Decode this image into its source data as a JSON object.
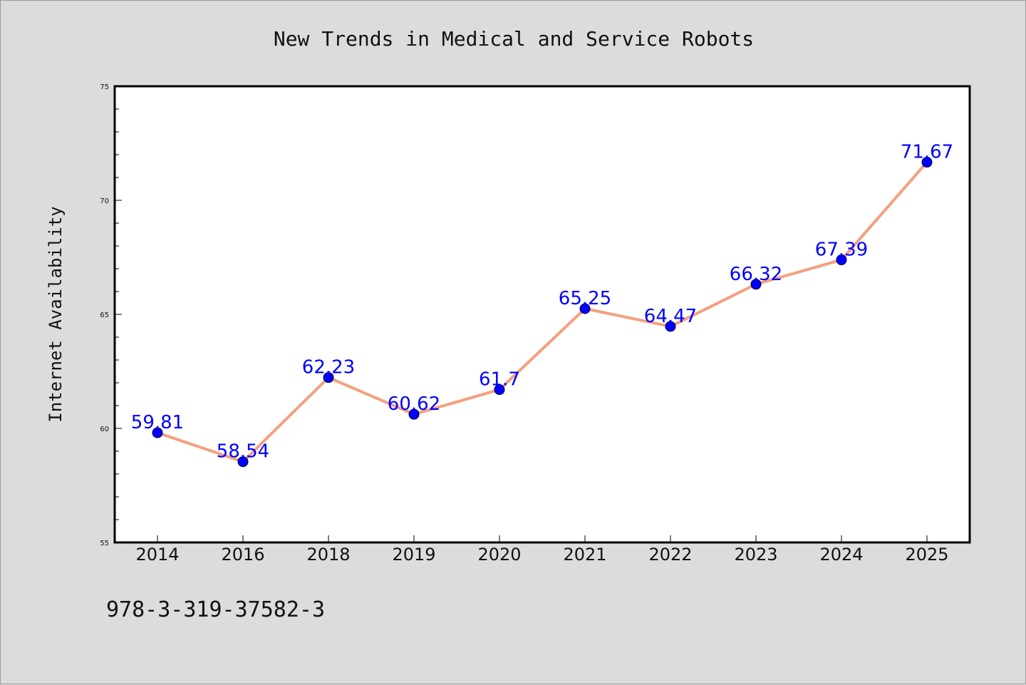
{
  "chart_data": {
    "type": "line",
    "title": "New Trends in Medical and Service Robots",
    "ylabel": "Internet Availability",
    "xlabel": "",
    "categories": [
      "2014",
      "2016",
      "2018",
      "2019",
      "2020",
      "2021",
      "2022",
      "2023",
      "2024",
      "2025"
    ],
    "series": [
      {
        "values": [
          59.81,
          58.54,
          62.23,
          60.62,
          61.7,
          65.25,
          64.47,
          66.32,
          67.39,
          71.67
        ],
        "data_labels": [
          "59.81",
          "58.54",
          "62.23",
          "60.62",
          "61.7",
          "65.25",
          "64.47",
          "66.32",
          "67.39",
          "71.67"
        ],
        "line_color": "#f4a07e",
        "marker_color": "#0000ff"
      }
    ],
    "ylim": [
      55,
      75
    ],
    "yticks": [
      "55",
      "60",
      "65",
      "70",
      "75"
    ],
    "grid": false,
    "legend": "none"
  },
  "footer": {
    "isbn": "978-3-319-37582-3"
  },
  "colors": {
    "background": "#dcdcdc",
    "plot_area": "#ffffff",
    "label_color": "#0000ff"
  }
}
